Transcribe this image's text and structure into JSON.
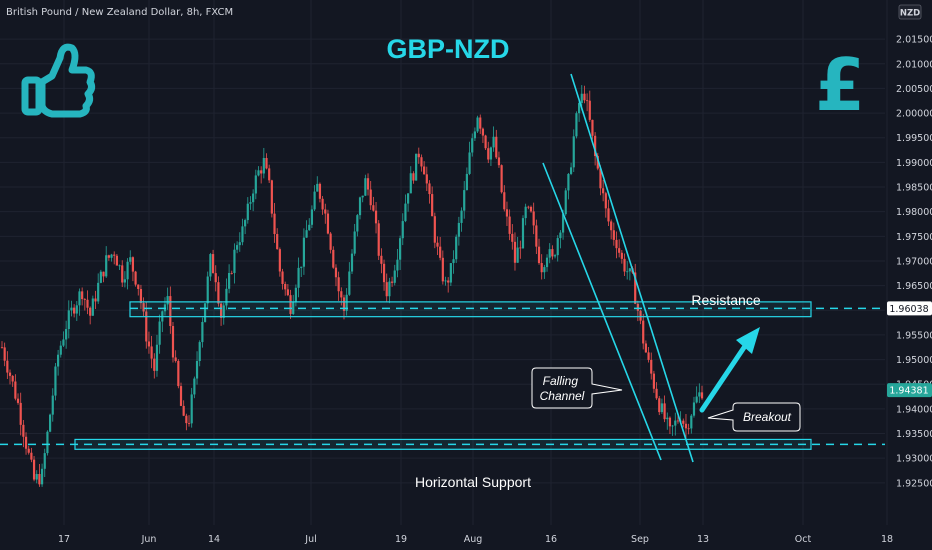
{
  "symbol_label": "British Pound / New Zealand Dollar, 8h, FXCM",
  "currency_badge": "NZD",
  "chart_data": {
    "type": "candlestick",
    "title": "GBP-NZD",
    "y_ticks": [
      "2.01500",
      "2.01000",
      "2.00500",
      "2.00000",
      "1.99500",
      "1.99000",
      "1.98500",
      "1.98000",
      "1.97500",
      "1.97000",
      "1.96500",
      "1.96000",
      "1.95500",
      "1.95000",
      "1.94500",
      "1.94000",
      "1.93500",
      "1.93000",
      "1.92500"
    ],
    "x_ticks": [
      "17",
      "Jun",
      "14",
      "Jul",
      "19",
      "Aug",
      "16",
      "Sep",
      "13",
      "Oct",
      "18"
    ],
    "ylim": [
      1.9205,
      2.0205
    ],
    "last_price": "1.94381",
    "last_price_value": 1.94381,
    "resistance_price": "1.96038",
    "resistance_value": 1.96038,
    "support_value": 1.9328,
    "resistance_zone": [
      1.9587,
      1.9617
    ],
    "support_zone": [
      1.9318,
      1.9338
    ],
    "annotations": {
      "resistance": "Resistance",
      "support": "Horizontal Support",
      "falling_channel": "Falling\nChannel",
      "breakout": "Breakout"
    },
    "path_points": [
      [
        0,
        1.9525
      ],
      [
        3,
        1.947
      ],
      [
        6,
        1.941
      ],
      [
        9,
        1.933
      ],
      [
        12,
        1.9255
      ],
      [
        15,
        1.9265
      ],
      [
        18,
        1.939
      ],
      [
        21,
        1.951
      ],
      [
        24,
        1.957
      ],
      [
        27,
        1.961
      ],
      [
        30,
        1.964
      ],
      [
        33,
        1.959
      ],
      [
        36,
        1.965
      ],
      [
        39,
        1.97
      ],
      [
        42,
        1.972
      ],
      [
        45,
        1.967
      ],
      [
        48,
        1.97
      ],
      [
        51,
        1.965
      ],
      [
        54,
        1.955
      ],
      [
        57,
        1.948
      ],
      [
        60,
        1.96
      ],
      [
        62,
        1.962
      ],
      [
        64,
        1.952
      ],
      [
        66,
        1.944
      ],
      [
        68,
        1.937
      ],
      [
        70,
        1.938
      ],
      [
        72,
        1.945
      ],
      [
        74,
        1.955
      ],
      [
        76,
        1.962
      ],
      [
        78,
        1.97
      ],
      [
        80,
        1.967
      ],
      [
        82,
        1.959
      ],
      [
        84,
        1.963
      ],
      [
        86,
        1.969
      ],
      [
        88,
        1.974
      ],
      [
        90,
        1.976
      ],
      [
        92,
        1.98
      ],
      [
        94,
        1.985
      ],
      [
        96,
        1.988
      ],
      [
        98,
        1.99
      ],
      [
        100,
        1.985
      ],
      [
        102,
        1.976
      ],
      [
        104,
        1.968
      ],
      [
        106,
        1.964
      ],
      [
        108,
        1.961
      ],
      [
        110,
        1.966
      ],
      [
        112,
        1.97
      ],
      [
        114,
        1.976
      ],
      [
        116,
        1.98
      ],
      [
        118,
        1.985
      ],
      [
        120,
        1.982
      ],
      [
        122,
        1.977
      ],
      [
        124,
        1.97
      ],
      [
        126,
        1.964
      ],
      [
        128,
        1.96
      ],
      [
        130,
        1.968
      ],
      [
        132,
        1.975
      ],
      [
        134,
        1.982
      ],
      [
        136,
        1.986
      ],
      [
        138,
        1.983
      ],
      [
        140,
        1.976
      ],
      [
        142,
        1.968
      ],
      [
        144,
        1.964
      ],
      [
        146,
        1.967
      ],
      [
        148,
        1.972
      ],
      [
        150,
        1.979
      ],
      [
        152,
        1.985
      ],
      [
        154,
        1.988
      ],
      [
        156,
        1.992
      ],
      [
        158,
        1.989
      ],
      [
        160,
        1.982
      ],
      [
        162,
        1.975
      ],
      [
        164,
        1.969
      ],
      [
        166,
        1.965
      ],
      [
        168,
        1.968
      ],
      [
        170,
        1.974
      ],
      [
        172,
        1.98
      ],
      [
        174,
        1.987
      ],
      [
        176,
        1.995
      ],
      [
        178,
        2.0
      ],
      [
        180,
        1.996
      ],
      [
        182,
        1.992
      ],
      [
        184,
        1.994
      ],
      [
        186,
        1.988
      ],
      [
        188,
        1.98
      ],
      [
        190,
        1.976
      ],
      [
        192,
        1.97
      ],
      [
        194,
        1.974
      ],
      [
        196,
        1.98
      ],
      [
        198,
        1.979
      ],
      [
        200,
        1.973
      ],
      [
        202,
        1.969
      ],
      [
        204,
        1.972
      ],
      [
        206,
        1.97
      ],
      [
        208,
        1.975
      ],
      [
        210,
        1.98
      ],
      [
        212,
        1.986
      ],
      [
        214,
        1.995
      ],
      [
        216,
        2.002
      ],
      [
        218,
        2.004
      ],
      [
        220,
        1.998
      ],
      [
        222,
        1.991
      ],
      [
        224,
        1.986
      ],
      [
        226,
        1.98
      ],
      [
        228,
        1.976
      ],
      [
        230,
        1.974
      ],
      [
        232,
        1.97
      ],
      [
        234,
        1.968
      ],
      [
        236,
        1.966
      ],
      [
        238,
        1.96
      ],
      [
        240,
        1.954
      ],
      [
        242,
        1.949
      ],
      [
        244,
        1.945
      ],
      [
        246,
        1.941
      ],
      [
        248,
        1.938
      ],
      [
        250,
        1.935
      ],
      [
        252,
        1.937
      ],
      [
        254,
        1.939
      ],
      [
        256,
        1.936
      ],
      [
        258,
        1.9395
      ],
      [
        260,
        1.942
      ],
      [
        262,
        1.9438
      ]
    ]
  }
}
